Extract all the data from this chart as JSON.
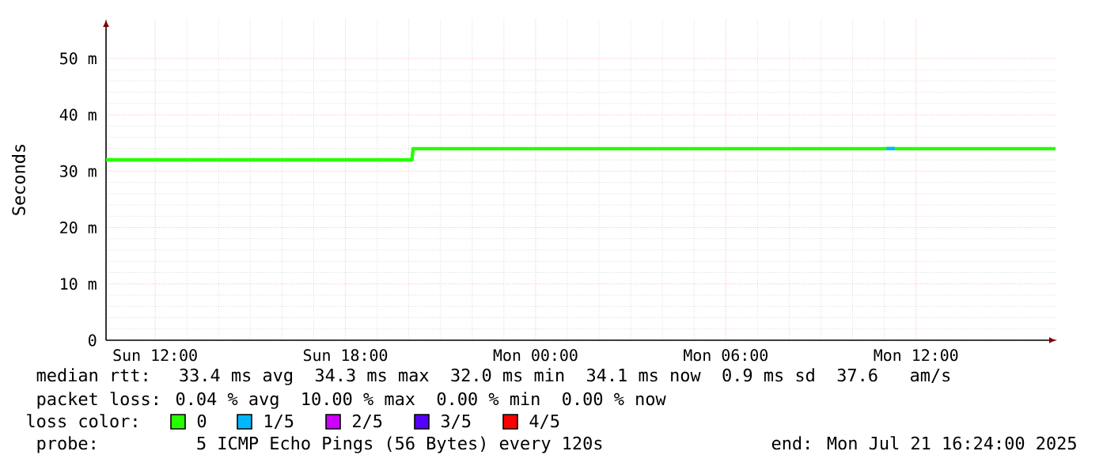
{
  "chart_data": {
    "type": "line",
    "ylabel": "Seconds",
    "xlim": [
      "2025-07-20T10:27",
      "2025-07-21T16:27"
    ],
    "xticks": [
      {
        "value": "2025-07-20T12:00",
        "label": "Sun 12:00"
      },
      {
        "value": "2025-07-20T18:00",
        "label": "Sun 18:00"
      },
      {
        "value": "2025-07-21T00:00",
        "label": "Mon 00:00"
      },
      {
        "value": "2025-07-21T06:00",
        "label": "Mon 06:00"
      },
      {
        "value": "2025-07-21T12:00",
        "label": "Mon 12:00"
      }
    ],
    "ylim": [
      0,
      57
    ],
    "yticks": [
      0,
      {
        "value": 10,
        "label": "10 m"
      },
      {
        "value": 20,
        "label": "20 m"
      },
      {
        "value": 30,
        "label": "30 m"
      },
      {
        "value": 40,
        "label": "40 m"
      },
      {
        "value": 50,
        "label": "50 m"
      }
    ],
    "grid": true,
    "legend": "bottom",
    "legend_title": "loss color:",
    "series": [
      {
        "name": "0",
        "color": "#26ff00",
        "x": [
          "2025-07-20T10:27",
          "2025-07-20T14:00",
          "2025-07-20T18:00",
          "2025-07-20T20:06",
          "2025-07-20T20:08",
          "2025-07-21T00:00",
          "2025-07-21T04:00",
          "2025-07-21T08:00",
          "2025-07-21T12:00",
          "2025-07-21T16:24"
        ],
        "values": [
          32,
          32,
          32,
          32,
          34,
          34,
          34,
          34,
          34,
          34
        ]
      },
      {
        "name": "1/5",
        "color": "#00b8ff",
        "x": [
          "2025-07-21T11:04",
          "2025-07-21T11:20"
        ],
        "values": [
          34,
          34
        ]
      },
      {
        "name": "2/5",
        "color": "#cc00ff"
      },
      {
        "name": "3/5",
        "color": "#5500ff"
      },
      {
        "name": "4/5",
        "color": "#ff0000"
      }
    ],
    "annotations": [
      "median rtt:  33.4 ms avg  34.3 ms max  32.0 ms min  34.1 ms now  0.9 ms sd  37.6   am/s",
      "packet loss: 0.04 % avg  10.00 % max  0.00 % min  0.00 % now",
      "probe:       5 ICMP Echo Pings (56 Bytes) every 120s",
      "end: Mon Jul 21 16:24:00 2025"
    ]
  }
}
